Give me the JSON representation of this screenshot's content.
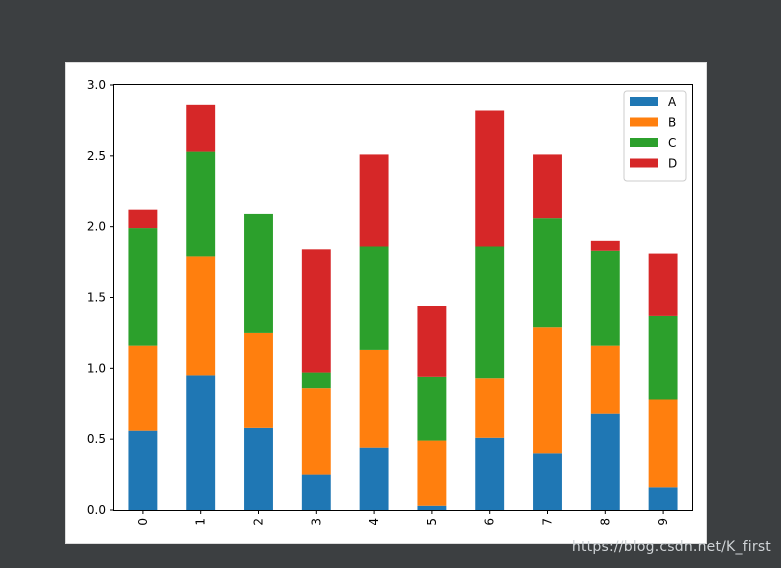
{
  "chart_data": {
    "type": "bar",
    "stacked": true,
    "categories": [
      "0",
      "1",
      "2",
      "3",
      "4",
      "5",
      "6",
      "7",
      "8",
      "9"
    ],
    "series": [
      {
        "name": "A",
        "color": "#1f77b4",
        "values": [
          0.56,
          0.95,
          0.58,
          0.25,
          0.44,
          0.03,
          0.51,
          0.4,
          0.68,
          0.16
        ]
      },
      {
        "name": "B",
        "color": "#ff7f0e",
        "values": [
          0.6,
          0.84,
          0.67,
          0.61,
          0.69,
          0.46,
          0.42,
          0.89,
          0.48,
          0.62
        ]
      },
      {
        "name": "C",
        "color": "#2ca02c",
        "values": [
          0.83,
          0.74,
          0.84,
          0.11,
          0.73,
          0.45,
          0.93,
          0.77,
          0.67,
          0.59
        ]
      },
      {
        "name": "D",
        "color": "#d62728",
        "values": [
          0.13,
          0.33,
          0.0,
          0.87,
          0.65,
          0.5,
          0.96,
          0.45,
          0.07,
          0.44
        ]
      }
    ],
    "ylim": [
      0,
      3.0
    ],
    "yticks": [
      "0.0",
      "0.5",
      "1.0",
      "1.5",
      "2.0",
      "2.5",
      "3.0"
    ],
    "legend_position": "top-right",
    "grid": false
  },
  "watermark": "https://blog.csdn.net/K_first"
}
